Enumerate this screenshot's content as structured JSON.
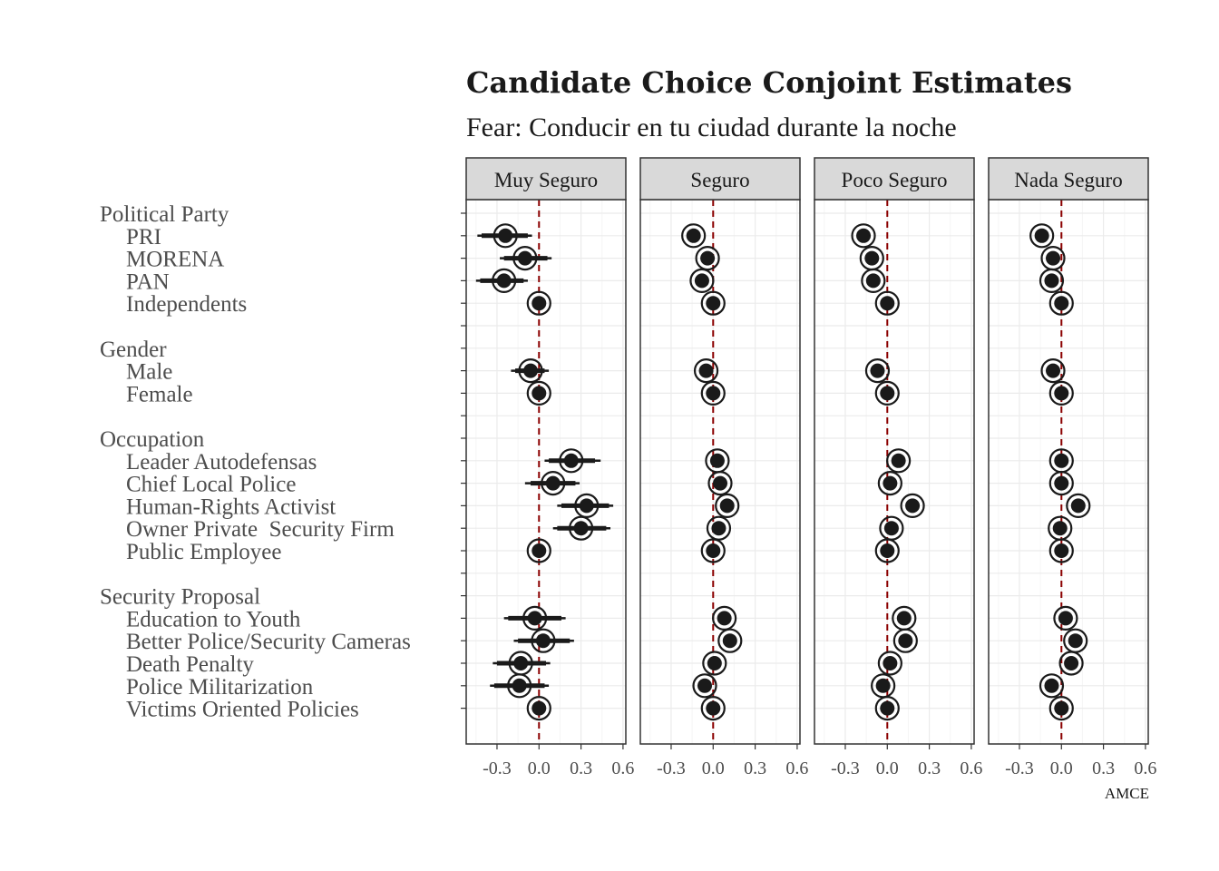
{
  "chart_data": {
    "type": "scatter",
    "title": "Candidate Choice Conjoint Estimates",
    "subtitle": "Fear: Conducir en tu ciudad durante la noche",
    "xlabel": "AMCE",
    "xlim": [
      -0.52,
      0.62
    ],
    "xticks": [
      -0.3,
      0.0,
      0.3,
      0.6
    ],
    "xtick_labels": [
      "-0.3",
      "0.0",
      "0.3",
      "0.6"
    ],
    "reference_line": 0,
    "grid": true,
    "rows": [
      {
        "label": "Political Party",
        "kind": "header"
      },
      {
        "label": "PRI",
        "kind": "level"
      },
      {
        "label": "MORENA",
        "kind": "level"
      },
      {
        "label": "PAN",
        "kind": "level"
      },
      {
        "label": "Independents",
        "kind": "level"
      },
      {
        "label": "",
        "kind": "blank"
      },
      {
        "label": "Gender",
        "kind": "header"
      },
      {
        "label": "Male",
        "kind": "level"
      },
      {
        "label": "Female",
        "kind": "level"
      },
      {
        "label": "",
        "kind": "blank"
      },
      {
        "label": "Occupation",
        "kind": "header"
      },
      {
        "label": "Leader Autodefensas",
        "kind": "level"
      },
      {
        "label": "Chief Local Police",
        "kind": "level"
      },
      {
        "label": "Human-Rights Activist",
        "kind": "level"
      },
      {
        "label": "Owner Private  Security Firm",
        "kind": "level"
      },
      {
        "label": "Public Employee",
        "kind": "level"
      },
      {
        "label": "",
        "kind": "blank"
      },
      {
        "label": "Security Proposal",
        "kind": "header"
      },
      {
        "label": "Education to Youth",
        "kind": "level"
      },
      {
        "label": "Better Police/Security Cameras",
        "kind": "level"
      },
      {
        "label": "Death Penalty",
        "kind": "level"
      },
      {
        "label": "Police Militarization",
        "kind": "level"
      },
      {
        "label": "Victims Oriented Policies",
        "kind": "level"
      }
    ],
    "facets": [
      {
        "name": "Muy Seguro",
        "points": [
          {
            "row": 1,
            "est": -0.24,
            "lo95": -0.44,
            "hi95": -0.05,
            "lo90": -0.41,
            "hi90": -0.08
          },
          {
            "row": 2,
            "est": -0.1,
            "lo95": -0.28,
            "hi95": 0.09,
            "lo90": -0.25,
            "hi90": 0.06
          },
          {
            "row": 3,
            "est": -0.25,
            "lo95": -0.45,
            "hi95": -0.08,
            "lo90": -0.42,
            "hi90": -0.11
          },
          {
            "row": 4,
            "est": 0.0,
            "lo95": 0.0,
            "hi95": 0.0,
            "lo90": 0.0,
            "hi90": 0.0
          },
          {
            "row": 7,
            "est": -0.06,
            "lo95": -0.2,
            "hi95": 0.07,
            "lo90": -0.17,
            "hi90": 0.04
          },
          {
            "row": 8,
            "est": 0.0,
            "lo95": 0.0,
            "hi95": 0.0,
            "lo90": 0.0,
            "hi90": 0.0
          },
          {
            "row": 11,
            "est": 0.23,
            "lo95": 0.04,
            "hi95": 0.44,
            "lo90": 0.07,
            "hi90": 0.4
          },
          {
            "row": 12,
            "est": 0.1,
            "lo95": -0.1,
            "hi95": 0.29,
            "lo90": -0.06,
            "hi90": 0.26
          },
          {
            "row": 13,
            "est": 0.34,
            "lo95": 0.13,
            "hi95": 0.53,
            "lo90": 0.16,
            "hi90": 0.5
          },
          {
            "row": 14,
            "est": 0.3,
            "lo95": 0.1,
            "hi95": 0.51,
            "lo90": 0.13,
            "hi90": 0.48
          },
          {
            "row": 15,
            "est": 0.0,
            "lo95": 0.0,
            "hi95": 0.0,
            "lo90": 0.0,
            "hi90": 0.0
          },
          {
            "row": 18,
            "est": -0.03,
            "lo95": -0.25,
            "hi95": 0.19,
            "lo90": -0.22,
            "hi90": 0.16
          },
          {
            "row": 19,
            "est": 0.03,
            "lo95": -0.18,
            "hi95": 0.25,
            "lo90": -0.15,
            "hi90": 0.22
          },
          {
            "row": 20,
            "est": -0.13,
            "lo95": -0.33,
            "hi95": 0.08,
            "lo90": -0.3,
            "hi90": 0.05
          },
          {
            "row": 21,
            "est": -0.14,
            "lo95": -0.35,
            "hi95": 0.07,
            "lo90": -0.32,
            "hi90": 0.04
          },
          {
            "row": 22,
            "est": 0.0,
            "lo95": 0.0,
            "hi95": 0.0,
            "lo90": 0.0,
            "hi90": 0.0
          }
        ]
      },
      {
        "name": "Seguro",
        "points": [
          {
            "row": 1,
            "est": -0.14,
            "lo95": -0.17,
            "hi95": -0.11,
            "lo90": -0.165,
            "hi90": -0.115
          },
          {
            "row": 2,
            "est": -0.04,
            "lo95": -0.07,
            "hi95": -0.01,
            "lo90": -0.065,
            "hi90": -0.015
          },
          {
            "row": 3,
            "est": -0.08,
            "lo95": -0.11,
            "hi95": -0.05,
            "lo90": -0.105,
            "hi90": -0.055
          },
          {
            "row": 4,
            "est": 0.0,
            "lo95": 0.0,
            "hi95": 0.0,
            "lo90": 0.0,
            "hi90": 0.0
          },
          {
            "row": 7,
            "est": -0.05,
            "lo95": -0.08,
            "hi95": -0.02,
            "lo90": -0.075,
            "hi90": -0.025
          },
          {
            "row": 8,
            "est": 0.0,
            "lo95": 0.0,
            "hi95": 0.0,
            "lo90": 0.0,
            "hi90": 0.0
          },
          {
            "row": 11,
            "est": 0.03,
            "lo95": 0.0,
            "hi95": 0.06,
            "lo90": 0.005,
            "hi90": 0.055
          },
          {
            "row": 12,
            "est": 0.05,
            "lo95": 0.02,
            "hi95": 0.08,
            "lo90": 0.025,
            "hi90": 0.075
          },
          {
            "row": 13,
            "est": 0.1,
            "lo95": 0.07,
            "hi95": 0.13,
            "lo90": 0.075,
            "hi90": 0.125
          },
          {
            "row": 14,
            "est": 0.04,
            "lo95": 0.01,
            "hi95": 0.07,
            "lo90": 0.015,
            "hi90": 0.065
          },
          {
            "row": 15,
            "est": 0.0,
            "lo95": 0.0,
            "hi95": 0.0,
            "lo90": 0.0,
            "hi90": 0.0
          },
          {
            "row": 18,
            "est": 0.08,
            "lo95": 0.05,
            "hi95": 0.11,
            "lo90": 0.055,
            "hi90": 0.105
          },
          {
            "row": 19,
            "est": 0.12,
            "lo95": 0.09,
            "hi95": 0.15,
            "lo90": 0.095,
            "hi90": 0.145
          },
          {
            "row": 20,
            "est": 0.01,
            "lo95": -0.02,
            "hi95": 0.04,
            "lo90": -0.015,
            "hi90": 0.035
          },
          {
            "row": 21,
            "est": -0.06,
            "lo95": -0.09,
            "hi95": -0.03,
            "lo90": -0.085,
            "hi90": -0.035
          },
          {
            "row": 22,
            "est": 0.0,
            "lo95": 0.0,
            "hi95": 0.0,
            "lo90": 0.0,
            "hi90": 0.0
          }
        ]
      },
      {
        "name": "Poco Seguro",
        "points": [
          {
            "row": 1,
            "est": -0.17,
            "lo95": -0.2,
            "hi95": -0.14,
            "lo90": -0.195,
            "hi90": -0.145
          },
          {
            "row": 2,
            "est": -0.11,
            "lo95": -0.14,
            "hi95": -0.08,
            "lo90": -0.135,
            "hi90": -0.085
          },
          {
            "row": 3,
            "est": -0.1,
            "lo95": -0.13,
            "hi95": -0.07,
            "lo90": -0.125,
            "hi90": -0.075
          },
          {
            "row": 4,
            "est": 0.0,
            "lo95": 0.0,
            "hi95": 0.0,
            "lo90": 0.0,
            "hi90": 0.0
          },
          {
            "row": 7,
            "est": -0.07,
            "lo95": -0.1,
            "hi95": -0.04,
            "lo90": -0.095,
            "hi90": -0.045
          },
          {
            "row": 8,
            "est": 0.0,
            "lo95": 0.0,
            "hi95": 0.0,
            "lo90": 0.0,
            "hi90": 0.0
          },
          {
            "row": 11,
            "est": 0.08,
            "lo95": 0.05,
            "hi95": 0.11,
            "lo90": 0.055,
            "hi90": 0.105
          },
          {
            "row": 12,
            "est": 0.02,
            "lo95": -0.01,
            "hi95": 0.05,
            "lo90": -0.005,
            "hi90": 0.045
          },
          {
            "row": 13,
            "est": 0.18,
            "lo95": 0.15,
            "hi95": 0.21,
            "lo90": 0.155,
            "hi90": 0.205
          },
          {
            "row": 14,
            "est": 0.03,
            "lo95": 0.0,
            "hi95": 0.06,
            "lo90": 0.005,
            "hi90": 0.055
          },
          {
            "row": 15,
            "est": 0.0,
            "lo95": 0.0,
            "hi95": 0.0,
            "lo90": 0.0,
            "hi90": 0.0
          },
          {
            "row": 18,
            "est": 0.12,
            "lo95": 0.09,
            "hi95": 0.15,
            "lo90": 0.095,
            "hi90": 0.145
          },
          {
            "row": 19,
            "est": 0.13,
            "lo95": 0.1,
            "hi95": 0.16,
            "lo90": 0.105,
            "hi90": 0.155
          },
          {
            "row": 20,
            "est": 0.02,
            "lo95": -0.01,
            "hi95": 0.05,
            "lo90": -0.005,
            "hi90": 0.045
          },
          {
            "row": 21,
            "est": -0.03,
            "lo95": -0.06,
            "hi95": 0.0,
            "lo90": -0.055,
            "hi90": -0.005
          },
          {
            "row": 22,
            "est": 0.0,
            "lo95": 0.0,
            "hi95": 0.0,
            "lo90": 0.0,
            "hi90": 0.0
          }
        ]
      },
      {
        "name": "Nada Seguro",
        "points": [
          {
            "row": 1,
            "est": -0.14,
            "lo95": -0.17,
            "hi95": -0.11,
            "lo90": -0.165,
            "hi90": -0.115
          },
          {
            "row": 2,
            "est": -0.06,
            "lo95": -0.09,
            "hi95": -0.03,
            "lo90": -0.085,
            "hi90": -0.035
          },
          {
            "row": 3,
            "est": -0.07,
            "lo95": -0.1,
            "hi95": -0.04,
            "lo90": -0.095,
            "hi90": -0.045
          },
          {
            "row": 4,
            "est": 0.0,
            "lo95": 0.0,
            "hi95": 0.0,
            "lo90": 0.0,
            "hi90": 0.0
          },
          {
            "row": 7,
            "est": -0.06,
            "lo95": -0.09,
            "hi95": -0.03,
            "lo90": -0.085,
            "hi90": -0.035
          },
          {
            "row": 8,
            "est": 0.0,
            "lo95": 0.0,
            "hi95": 0.0,
            "lo90": 0.0,
            "hi90": 0.0
          },
          {
            "row": 11,
            "est": 0.0,
            "lo95": -0.03,
            "hi95": 0.03,
            "lo90": -0.025,
            "hi90": 0.025
          },
          {
            "row": 12,
            "est": 0.0,
            "lo95": -0.03,
            "hi95": 0.03,
            "lo90": -0.025,
            "hi90": 0.025
          },
          {
            "row": 13,
            "est": 0.12,
            "lo95": 0.09,
            "hi95": 0.15,
            "lo90": 0.095,
            "hi90": 0.145
          },
          {
            "row": 14,
            "est": -0.01,
            "lo95": -0.04,
            "hi95": 0.02,
            "lo90": -0.035,
            "hi90": 0.015
          },
          {
            "row": 15,
            "est": 0.0,
            "lo95": 0.0,
            "hi95": 0.0,
            "lo90": 0.0,
            "hi90": 0.0
          },
          {
            "row": 18,
            "est": 0.03,
            "lo95": 0.0,
            "hi95": 0.06,
            "lo90": 0.005,
            "hi90": 0.055
          },
          {
            "row": 19,
            "est": 0.1,
            "lo95": 0.07,
            "hi95": 0.13,
            "lo90": 0.075,
            "hi90": 0.125
          },
          {
            "row": 20,
            "est": 0.07,
            "lo95": 0.04,
            "hi95": 0.1,
            "lo90": 0.045,
            "hi90": 0.095
          },
          {
            "row": 21,
            "est": -0.07,
            "lo95": -0.1,
            "hi95": -0.04,
            "lo90": -0.095,
            "hi90": -0.045
          },
          {
            "row": 22,
            "est": 0.0,
            "lo95": 0.0,
            "hi95": 0.0,
            "lo90": 0.0,
            "hi90": 0.0
          }
        ]
      }
    ]
  },
  "colors": {
    "background": "#ffffff",
    "panel_border": "#333333",
    "strip_fill": "#d9d9d9",
    "grid_major": "#ebebeb",
    "grid_minor": "#f5f5f5",
    "reference_line": "#8b0000",
    "point": "#1a1a1a",
    "axis_text": "#4d4d4d"
  }
}
